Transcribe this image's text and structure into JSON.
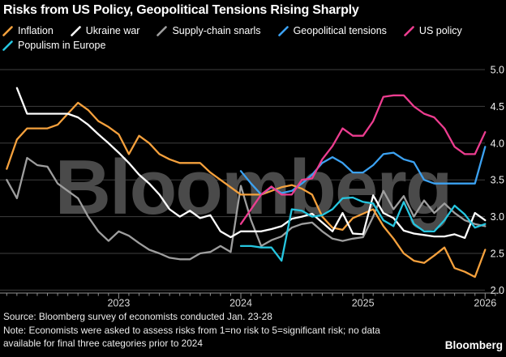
{
  "title": "Risks from US Policy, Geopolitical Tensions Rising Sharply",
  "watermark": "Bloomberg",
  "brand": "Bloomberg",
  "footer": {
    "source": "Source: Bloomberg survey of economists conducted Jan. 23-28",
    "note_line1": "Note: Economists were asked to assess risks from 1=no risk to 5=significant risk; no data",
    "note_line2": "available for final three categories prior to 2024"
  },
  "colors": {
    "background": "#000000",
    "gridline": "#3f3f3f",
    "axis": "#909090",
    "watermark": "#4a4a4a",
    "tick_label": "#d9d9d9",
    "y_label": "#f0f0f0"
  },
  "chart_data": {
    "type": "line",
    "x_unit": "monthly surveys",
    "x_start": "2022-02",
    "x_end": "2026-01",
    "x_tick_labels": [
      "2023",
      "2024",
      "2025",
      "2026"
    ],
    "ylim": [
      2.0,
      5.0
    ],
    "y_ticks": [
      5.0,
      4.5,
      4.0,
      3.5,
      3.0,
      2.5,
      2.0
    ],
    "grid": "horizontal",
    "legend_position": "top",
    "series": [
      {
        "name": "Inflation",
        "color": "#f5a13d",
        "start_index": 0,
        "values": [
          3.65,
          4.05,
          4.2,
          4.2,
          4.2,
          4.25,
          4.4,
          4.55,
          4.45,
          4.3,
          4.22,
          4.12,
          3.85,
          4.1,
          4.0,
          3.85,
          3.78,
          3.73,
          3.73,
          3.73,
          3.6,
          3.5,
          3.4,
          3.3,
          3.3,
          3.3,
          3.35,
          3.4,
          3.43,
          3.38,
          3.3,
          3.0,
          2.85,
          2.82,
          2.98,
          3.04,
          3.1,
          2.87,
          2.7,
          2.5,
          2.4,
          2.37,
          2.47,
          2.58,
          2.3,
          2.25,
          2.18,
          2.55
        ]
      },
      {
        "name": "Ukraine war",
        "color": "#ffffff",
        "start_index": 1,
        "values": [
          4.75,
          4.4,
          4.4,
          4.4,
          4.4,
          4.4,
          4.35,
          4.25,
          4.12,
          4.0,
          3.87,
          3.73,
          3.57,
          3.45,
          3.3,
          3.1,
          3.0,
          3.08,
          2.98,
          3.02,
          2.8,
          2.72,
          2.8,
          2.8,
          2.8,
          2.83,
          2.87,
          2.97,
          3.0,
          3.04,
          2.92,
          2.8,
          3.05,
          2.77,
          2.76,
          3.29,
          3.05,
          2.98,
          2.81,
          2.77,
          2.75,
          2.73,
          2.73,
          2.76,
          2.71,
          3.05,
          2.95
        ]
      },
      {
        "name": "Supply-chain snarls",
        "color": "#9e9e9e",
        "start_index": 0,
        "values": [
          3.5,
          3.25,
          3.8,
          3.7,
          3.68,
          3.45,
          3.35,
          3.25,
          3.0,
          2.8,
          2.67,
          2.8,
          2.74,
          2.64,
          2.55,
          2.5,
          2.44,
          2.42,
          2.42,
          2.5,
          2.52,
          2.6,
          2.52,
          3.42,
          2.95,
          2.6,
          2.68,
          2.73,
          2.85,
          2.9,
          2.92,
          2.8,
          2.7,
          2.67,
          2.7,
          2.72,
          3.0,
          3.35,
          3.1,
          3.28,
          3.0,
          3.22,
          3.05,
          3.18,
          3.05,
          2.95,
          2.9,
          2.87
        ]
      },
      {
        "name": "Geopolitical tensions",
        "color": "#3ca2f2",
        "start_index": 23,
        "values": [
          3.62,
          3.45,
          3.3,
          3.4,
          3.32,
          3.35,
          3.45,
          3.57,
          3.73,
          3.81,
          3.73,
          3.6,
          3.6,
          3.7,
          3.85,
          3.87,
          3.78,
          3.74,
          3.5,
          3.45,
          3.45,
          3.45,
          3.45,
          3.45,
          3.95
        ]
      },
      {
        "name": "US policy",
        "color": "#ed3d90",
        "start_index": 23,
        "values": [
          2.9,
          3.1,
          3.3,
          3.41,
          3.3,
          3.3,
          3.5,
          3.52,
          3.78,
          3.96,
          4.2,
          4.1,
          4.1,
          4.3,
          4.63,
          4.65,
          4.65,
          4.5,
          4.4,
          4.35,
          4.2,
          3.95,
          3.85,
          3.85,
          4.15
        ]
      },
      {
        "name": "Populism in Europe",
        "color": "#26c6e0",
        "start_index": 23,
        "values": [
          2.6,
          2.6,
          2.58,
          2.58,
          2.4,
          3.1,
          3.08,
          3.0,
          3.02,
          3.1,
          3.25,
          3.26,
          3.2,
          3.18,
          2.95,
          2.87,
          3.2,
          2.9,
          2.8,
          2.8,
          2.95,
          3.15,
          3.03,
          2.85,
          2.9
        ]
      }
    ]
  }
}
